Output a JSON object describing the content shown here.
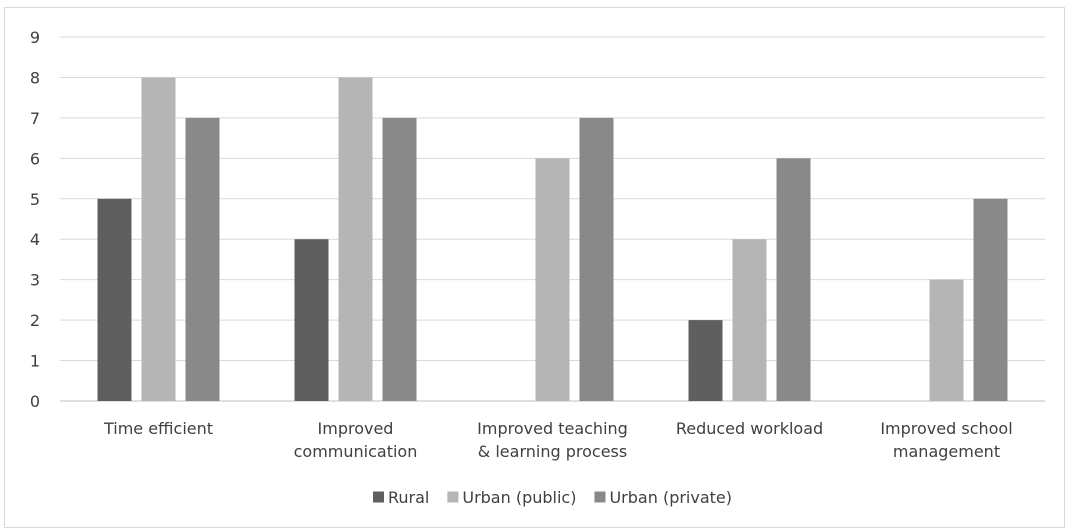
{
  "chart_data": {
    "type": "bar",
    "title": "",
    "xlabel": "",
    "ylabel": "",
    "ylim": [
      0,
      9
    ],
    "yticks": [
      0,
      1,
      2,
      3,
      4,
      5,
      6,
      7,
      8,
      9
    ],
    "grid": true,
    "legend_position": "bottom",
    "categories": [
      [
        "Time efficient"
      ],
      [
        "Improved",
        "communication"
      ],
      [
        "Improved teaching",
        "& learning process"
      ],
      [
        "Reduced workload"
      ],
      [
        "Improved school",
        "management"
      ]
    ],
    "series": [
      {
        "name": "Rural",
        "color": "#5f5f5f",
        "values": [
          5,
          4,
          null,
          2,
          null
        ]
      },
      {
        "name": "Urban (public)",
        "color": "#b5b5b5",
        "values": [
          8,
          8,
          6,
          4,
          3
        ]
      },
      {
        "name": "Urban (private)",
        "color": "#898989",
        "values": [
          7,
          7,
          7,
          6,
          5
        ]
      }
    ]
  }
}
